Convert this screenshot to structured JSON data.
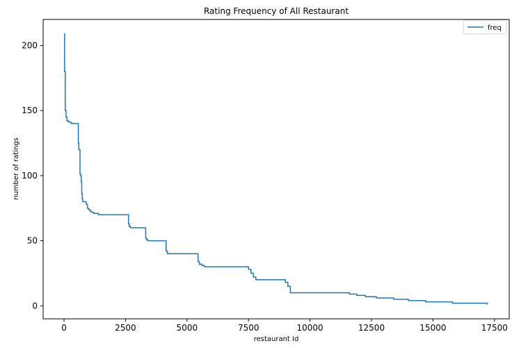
{
  "chart_data": {
    "type": "line",
    "title": "Rating Frequency of All Restaurant",
    "xlabel": "restaurant Id",
    "ylabel": "number of ratings",
    "xlim": [
      -850,
      18100
    ],
    "ylim": [
      -10,
      220
    ],
    "xticks": [
      0,
      2500,
      5000,
      7500,
      10000,
      12500,
      15000,
      17500
    ],
    "yticks": [
      0,
      50,
      100,
      150,
      200
    ],
    "grid": false,
    "legend_position": "top-right",
    "series": [
      {
        "name": "freq",
        "color": "#1f77b4",
        "x": [
          0,
          20,
          50,
          80,
          120,
          200,
          300,
          400,
          560,
          580,
          600,
          620,
          650,
          680,
          700,
          720,
          740,
          760,
          780,
          800,
          850,
          900,
          950,
          1000,
          1050,
          1100,
          1200,
          1300,
          1400,
          1500,
          1600,
          2600,
          2620,
          2650,
          2700,
          3300,
          3320,
          3350,
          3400,
          4100,
          4150,
          4200,
          5400,
          5450,
          5500,
          5600,
          5700,
          7400,
          7500,
          7600,
          7700,
          7800,
          8900,
          9000,
          9100,
          9200,
          11300,
          11600,
          11900,
          12250,
          12700,
          13400,
          14000,
          14700,
          15800,
          17200
        ],
        "y": [
          209,
          180,
          150,
          145,
          142,
          141,
          140,
          140,
          140,
          125,
          120,
          120,
          101,
          100,
          95,
          86,
          82,
          80,
          80,
          80,
          80,
          78,
          75,
          74,
          73,
          72,
          71,
          71,
          70,
          70,
          70,
          70,
          63,
          61,
          60,
          60,
          52,
          51,
          50,
          50,
          42,
          40,
          40,
          34,
          32,
          31,
          30,
          30,
          28,
          25,
          22,
          20,
          20,
          18,
          15,
          10,
          10,
          9,
          8,
          7,
          6,
          5,
          4,
          3,
          2,
          1
        ]
      }
    ]
  }
}
